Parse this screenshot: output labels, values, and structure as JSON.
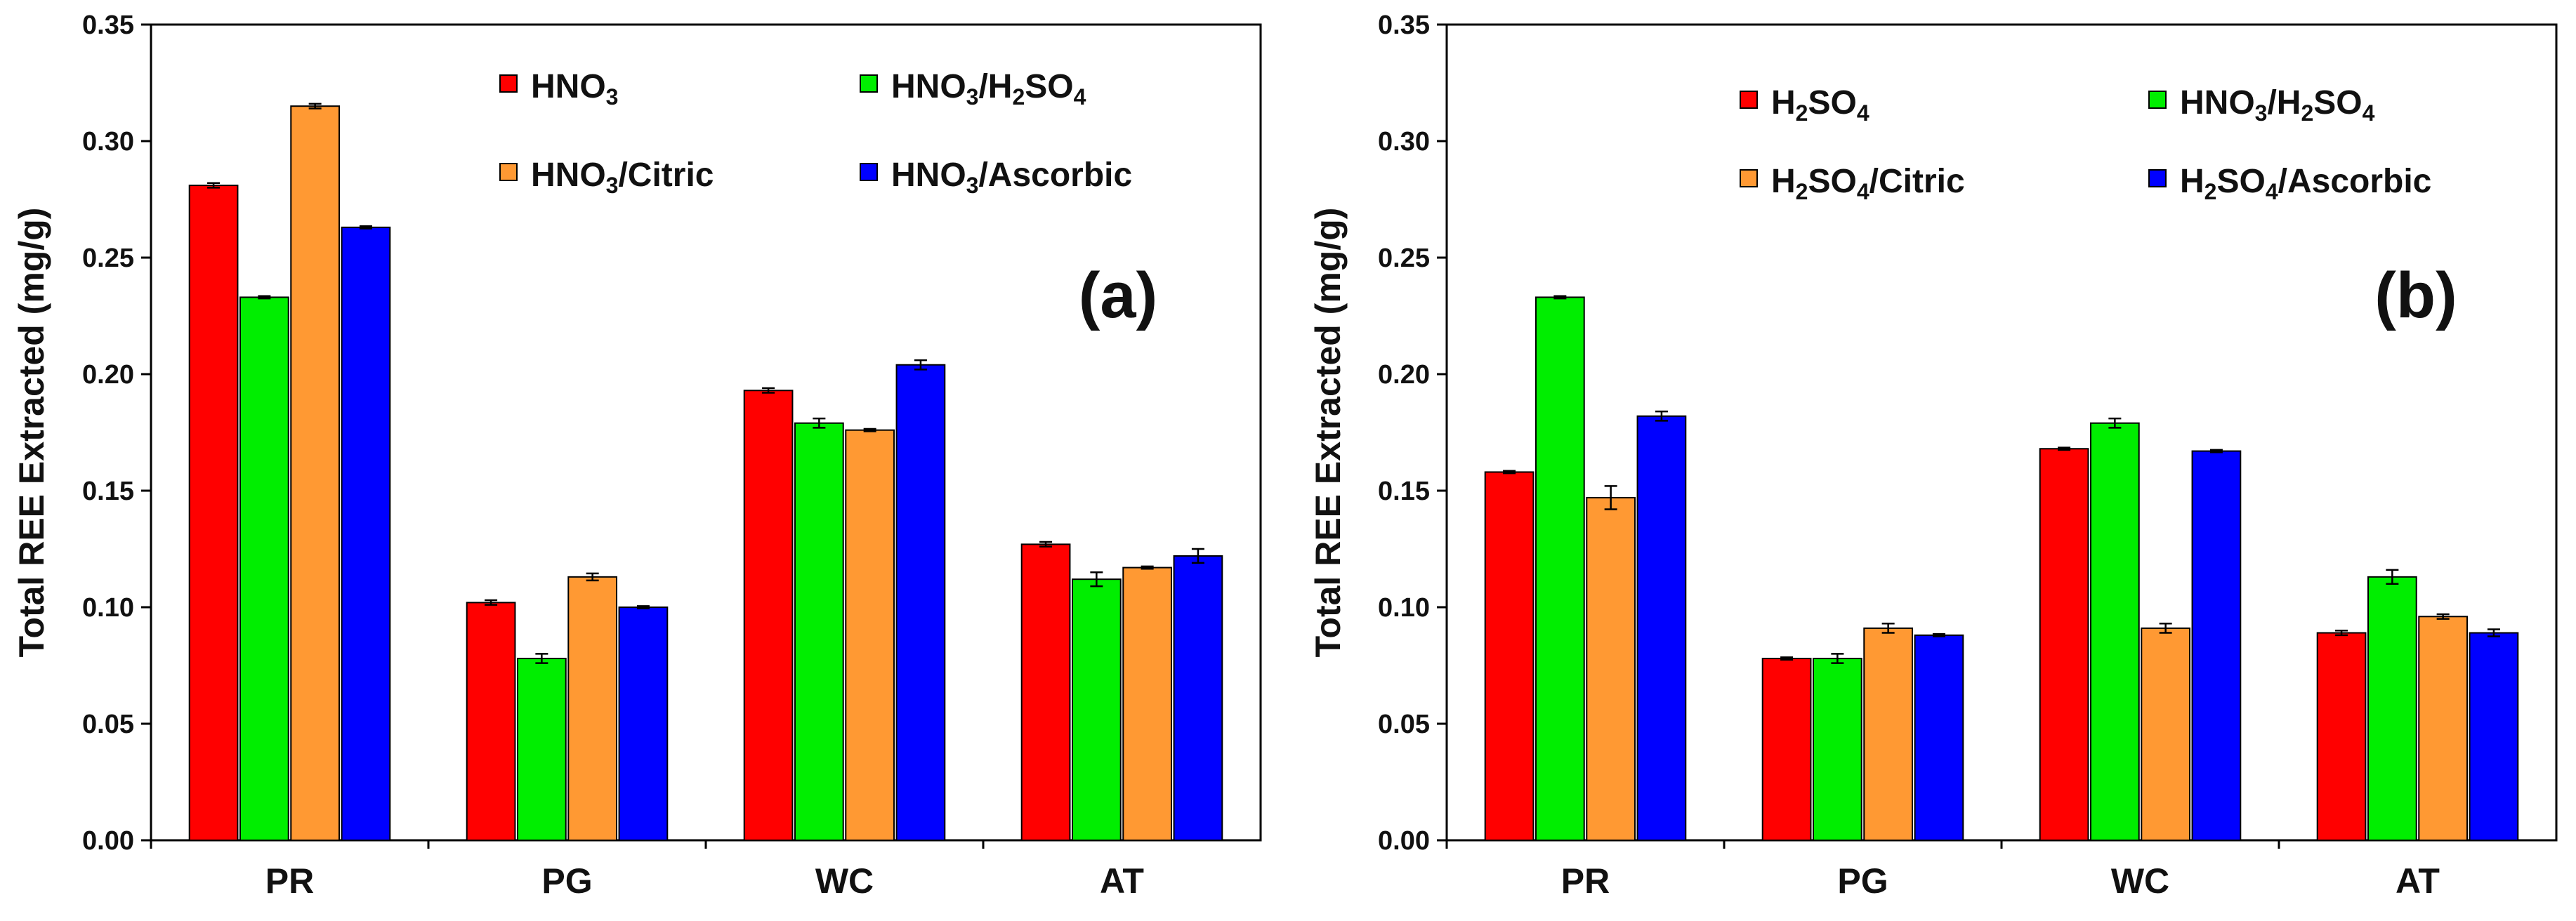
{
  "chart_data": [
    {
      "type": "bar",
      "panel_label": "(a)",
      "title": "",
      "xlabel": "",
      "ylabel": "Total REE Extracted (mg/g)",
      "ylim": [
        0,
        0.35
      ],
      "yticks": [
        "0.00",
        "0.05",
        "0.10",
        "0.15",
        "0.20",
        "0.25",
        "0.30",
        "0.35"
      ],
      "grid": false,
      "legend_position": "top-right",
      "categories": [
        "PR",
        "PG",
        "WC",
        "AT"
      ],
      "series": [
        {
          "name": "HNO3",
          "label_parts": [
            {
              "t": "HNO"
            },
            {
              "t": "3",
              "sub": true
            }
          ],
          "color": "#ff0000",
          "values": [
            0.281,
            0.102,
            0.193,
            0.127
          ],
          "errors": [
            0.001,
            0.001,
            0.001,
            0.001
          ]
        },
        {
          "name": "HNO3/H2SO4",
          "label_parts": [
            {
              "t": "HNO"
            },
            {
              "t": "3",
              "sub": true
            },
            {
              "t": "/H"
            },
            {
              "t": "2",
              "sub": true
            },
            {
              "t": "SO"
            },
            {
              "t": "4",
              "sub": true
            }
          ],
          "color": "#00ee00",
          "values": [
            0.233,
            0.078,
            0.179,
            0.112
          ],
          "errors": [
            0.0005,
            0.002,
            0.002,
            0.003
          ]
        },
        {
          "name": "HNO3/Citric",
          "label_parts": [
            {
              "t": "HNO"
            },
            {
              "t": "3",
              "sub": true
            },
            {
              "t": "/Citric"
            }
          ],
          "color": "#ff9933",
          "values": [
            0.315,
            0.113,
            0.176,
            0.117
          ],
          "errors": [
            0.001,
            0.0015,
            0.0005,
            0.0005
          ]
        },
        {
          "name": "HNO3/Ascorbic",
          "label_parts": [
            {
              "t": "HNO"
            },
            {
              "t": "3",
              "sub": true
            },
            {
              "t": "/Ascorbic"
            }
          ],
          "color": "#0000ff",
          "values": [
            0.263,
            0.1,
            0.204,
            0.122
          ],
          "errors": [
            0.0005,
            0.0005,
            0.002,
            0.003
          ]
        }
      ]
    },
    {
      "type": "bar",
      "panel_label": "(b)",
      "title": "",
      "xlabel": "",
      "ylabel": "Total REE Extracted (mg/g)",
      "ylim": [
        0,
        0.35
      ],
      "yticks": [
        "0.00",
        "0.05",
        "0.10",
        "0.15",
        "0.20",
        "0.25",
        "0.30",
        "0.35"
      ],
      "grid": false,
      "legend_position": "top-right",
      "categories": [
        "PR",
        "PG",
        "WC",
        "AT"
      ],
      "series": [
        {
          "name": "H2SO4",
          "label_parts": [
            {
              "t": "H"
            },
            {
              "t": "2",
              "sub": true
            },
            {
              "t": "SO"
            },
            {
              "t": "4",
              "sub": true
            }
          ],
          "color": "#ff0000",
          "values": [
            0.158,
            0.078,
            0.168,
            0.089
          ],
          "errors": [
            0.0005,
            0.0005,
            0.0005,
            0.001
          ]
        },
        {
          "name": "HNO3/H2SO4",
          "label_parts": [
            {
              "t": "HNO"
            },
            {
              "t": "3",
              "sub": true
            },
            {
              "t": "/H"
            },
            {
              "t": "2",
              "sub": true
            },
            {
              "t": "SO"
            },
            {
              "t": "4",
              "sub": true
            }
          ],
          "color": "#00ee00",
          "values": [
            0.233,
            0.078,
            0.179,
            0.113
          ],
          "errors": [
            0.0005,
            0.002,
            0.002,
            0.003
          ]
        },
        {
          "name": "H2SO4/Citric",
          "label_parts": [
            {
              "t": "H"
            },
            {
              "t": "2",
              "sub": true
            },
            {
              "t": "SO"
            },
            {
              "t": "4",
              "sub": true
            },
            {
              "t": "/Citric"
            }
          ],
          "color": "#ff9933",
          "values": [
            0.147,
            0.091,
            0.091,
            0.096
          ],
          "errors": [
            0.005,
            0.002,
            0.002,
            0.001
          ]
        },
        {
          "name": "H2SO4/Ascorbic",
          "label_parts": [
            {
              "t": "H"
            },
            {
              "t": "2",
              "sub": true
            },
            {
              "t": "SO"
            },
            {
              "t": "4",
              "sub": true
            },
            {
              "t": "/Ascorbic"
            }
          ],
          "color": "#0000ff",
          "values": [
            0.182,
            0.088,
            0.167,
            0.089
          ],
          "errors": [
            0.002,
            0.0005,
            0.0005,
            0.0015
          ]
        }
      ]
    }
  ]
}
